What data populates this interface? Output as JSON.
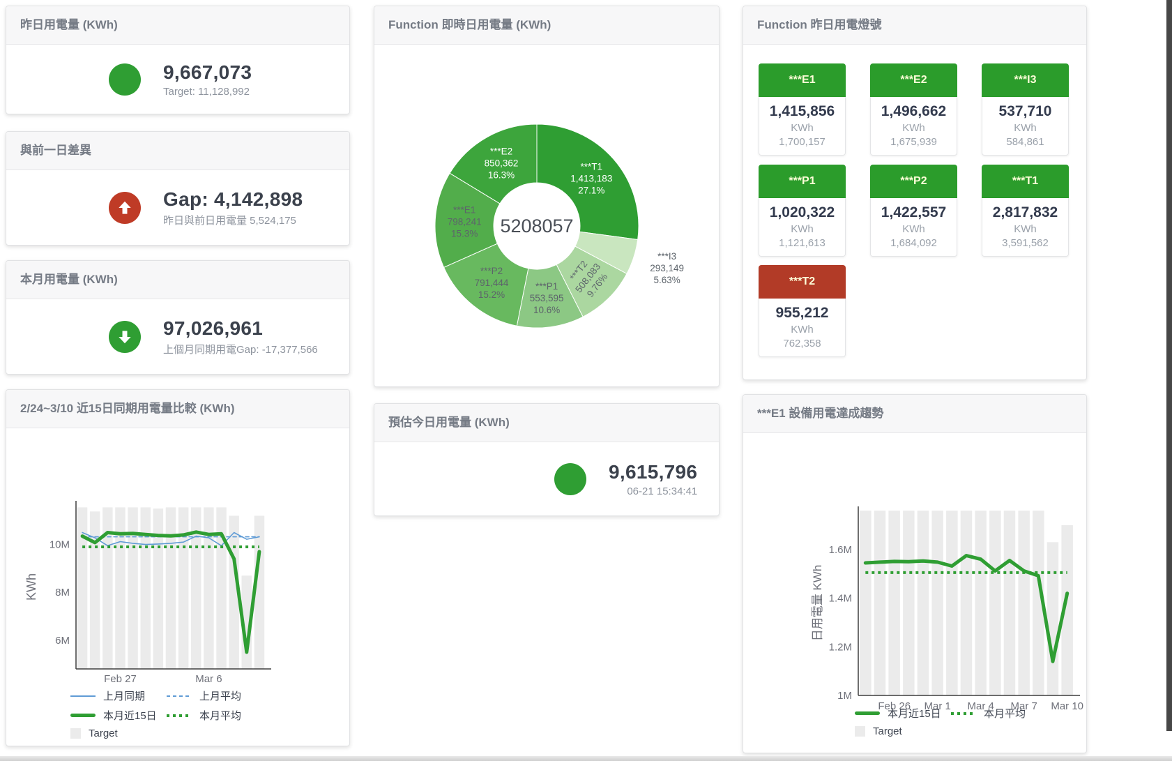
{
  "colors": {
    "green": "#2f9e33",
    "red": "#bf3b26",
    "blue": "#5f9bd5",
    "target_bar": "#ebebeb",
    "tile_green": "#2b9c2b",
    "tile_red": "#b23b27",
    "tile_label": "#fdfdd8"
  },
  "cards": {
    "yesterday": {
      "title": "昨日用電量 (KWh)",
      "value": "9,667,073",
      "subtext": "Target: 11,128,992",
      "icon": "green-circle"
    },
    "day_gap": {
      "title": "與前一日差異",
      "value": "Gap: 4,142,898",
      "subtext": "昨日與前日用電量 5,524,175",
      "icon": "red-up-arrow"
    },
    "month": {
      "title": "本月用電量 (KWh)",
      "value": "97,026,961",
      "subtext": "上個月同期用電Gap: -17,377,566",
      "icon": "green-down-arrow"
    },
    "estimate": {
      "title": "預估今日用電量 (KWh)",
      "value": "9,615,796",
      "subtext": "06-21 15:34:41",
      "icon": "green-circle"
    }
  },
  "donut": {
    "title": "Function 即時日用電量 (KWh)",
    "center_total": "5208057",
    "segments": [
      {
        "name": "***T1",
        "value": 1413183,
        "value_label": "1,413,183",
        "pct_label": "27.1%",
        "color": "#2f9e33",
        "label_color": "#ffffff"
      },
      {
        "name": "***I3",
        "value": 293149,
        "value_label": "293,149",
        "pct_label": "5.63%",
        "color": "#c9e6bf",
        "label_color": "#5d646b",
        "label_r": 196
      },
      {
        "name": "***T2",
        "value": 508083,
        "value_label": "508,083",
        "pct_label": "9.76%",
        "color": "#abd7a0",
        "label_color": "#5d646b",
        "label_rotate": -52
      },
      {
        "name": "***P1",
        "value": 553595,
        "value_label": "553,595",
        "pct_label": "10.6%",
        "color": "#8cc884",
        "label_color": "#5d646b"
      },
      {
        "name": "***P2",
        "value": 791444,
        "value_label": "791,444",
        "pct_label": "15.2%",
        "color": "#68b95f",
        "label_color": "#5d646b"
      },
      {
        "name": "***E1",
        "value": 798241,
        "value_label": "798,241",
        "pct_label": "15.3%",
        "color": "#52ad4b",
        "label_color": "#5d646b"
      },
      {
        "name": "***E2",
        "value": 850362,
        "value_label": "850,362",
        "pct_label": "16.3%",
        "color": "#3da53c",
        "label_color": "#ffffff"
      }
    ]
  },
  "lights": {
    "title": "Function 昨日用電燈號",
    "unit": "KWh",
    "tiles": [
      {
        "name": "***E1",
        "value": "1,415,856",
        "target": "1,700,157",
        "status": "green"
      },
      {
        "name": "***E2",
        "value": "1,496,662",
        "target": "1,675,939",
        "status": "green"
      },
      {
        "name": "***I3",
        "value": "537,710",
        "target": "584,861",
        "status": "green"
      },
      {
        "name": "***P1",
        "value": "1,020,322",
        "target": "1,121,613",
        "status": "green"
      },
      {
        "name": "***P2",
        "value": "1,422,557",
        "target": "1,684,092",
        "status": "green"
      },
      {
        "name": "***T1",
        "value": "2,817,832",
        "target": "3,591,562",
        "status": "green"
      },
      {
        "name": "***T2",
        "value": "955,212",
        "target": "762,358",
        "status": "red"
      }
    ]
  },
  "chart_data": [
    {
      "id": "compare",
      "type": "line+bar",
      "title": "2/24~3/10 近15日同期用電量比較 (KWh)",
      "ylabel": "KWh",
      "ylim": [
        4.8,
        11.65
      ],
      "yticks": [
        {
          "v": 6,
          "label": "6M"
        },
        {
          "v": 8,
          "label": "8M"
        },
        {
          "v": 10,
          "label": "10M"
        }
      ],
      "x_count": 15,
      "x_ticks": [
        {
          "i": 3,
          "label": "Feb 27"
        },
        {
          "i": 10,
          "label": "Mar 6"
        }
      ],
      "target_bars": [
        11.55,
        11.38,
        11.55,
        11.55,
        11.55,
        11.55,
        11.5,
        11.55,
        11.55,
        11.55,
        11.55,
        11.55,
        11.2,
        8.7,
        11.2
      ],
      "series": [
        {
          "name": "上月同期",
          "style": "thin",
          "color": "#5f9bd5",
          "values": [
            10.5,
            10.28,
            9.95,
            10.12,
            10.05,
            10.0,
            10.02,
            10.05,
            10.1,
            10.35,
            10.28,
            9.95,
            10.5,
            10.22,
            10.32
          ]
        },
        {
          "name": "上月平均",
          "style": "dashed",
          "color": "#5f9bd5",
          "value": 10.32
        },
        {
          "name": "本月近15日",
          "style": "thick",
          "color": "#2f9e33",
          "values": [
            10.35,
            10.08,
            10.5,
            10.45,
            10.46,
            10.42,
            10.38,
            10.36,
            10.4,
            10.52,
            10.42,
            10.45,
            9.4,
            5.5,
            9.7
          ]
        },
        {
          "name": "本月平均",
          "style": "dotted",
          "color": "#2f9e33",
          "value": 9.9
        }
      ],
      "legend": [
        [
          {
            "label": "上月同期",
            "swatch": "thin",
            "color": "#5f9bd5"
          },
          {
            "label": "上月平均",
            "swatch": "dashed",
            "color": "#5f9bd5"
          }
        ],
        [
          {
            "label": "本月近15日",
            "swatch": "thick",
            "color": "#2f9e33"
          },
          {
            "label": "本月平均",
            "swatch": "dotted",
            "color": "#2f9e33"
          }
        ],
        [
          {
            "label": "Target",
            "swatch": "box",
            "color": "#ebebeb"
          }
        ]
      ]
    },
    {
      "id": "trend",
      "type": "line+bar",
      "title": "***E1 設備用電達成趨勢",
      "ylabel": "日用電量 KWh",
      "ylim": [
        1.0,
        1.76
      ],
      "yticks": [
        {
          "v": 1,
          "label": "1M"
        },
        {
          "v": 1.2,
          "label": "1.2M"
        },
        {
          "v": 1.4,
          "label": "1.4M"
        },
        {
          "v": 1.6,
          "label": "1.6M"
        }
      ],
      "x_count": 15,
      "x_ticks": [
        {
          "i": 2,
          "label": "Feb 26"
        },
        {
          "i": 5,
          "label": "Mar 1"
        },
        {
          "i": 8,
          "label": "Mar 4"
        },
        {
          "i": 11,
          "label": "Mar 7"
        },
        {
          "i": 14,
          "label": "Mar 10"
        }
      ],
      "target_bars": [
        1.78,
        1.78,
        1.78,
        1.78,
        1.78,
        1.78,
        1.78,
        1.78,
        1.78,
        1.78,
        1.78,
        1.78,
        1.78,
        1.63,
        1.7
      ],
      "series": [
        {
          "name": "本月近15日",
          "style": "thick",
          "color": "#2f9e33",
          "values": [
            1.545,
            1.548,
            1.551,
            1.55,
            1.553,
            1.548,
            1.532,
            1.575,
            1.56,
            1.512,
            1.555,
            1.512,
            1.492,
            1.14,
            1.42
          ]
        },
        {
          "name": "本月平均",
          "style": "dotted",
          "color": "#2f9e33",
          "value": 1.505
        }
      ],
      "legend": [
        [
          {
            "label": "本月近15日",
            "swatch": "thick",
            "color": "#2f9e33"
          },
          {
            "label": "本月平均",
            "swatch": "dotted",
            "color": "#2f9e33"
          }
        ],
        [
          {
            "label": "Target",
            "swatch": "box",
            "color": "#ebebeb"
          }
        ]
      ]
    }
  ]
}
